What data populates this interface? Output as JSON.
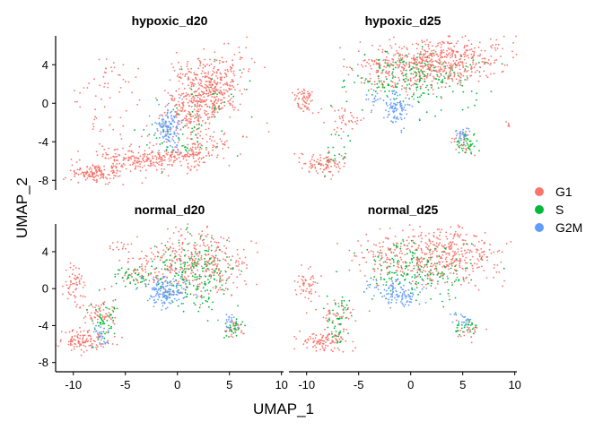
{
  "chart_data": {
    "type": "scatter",
    "title": "",
    "xlabel": "UMAP_1",
    "ylabel": "UMAP_2",
    "xlim": [
      -11.7,
      10.2
    ],
    "ylim": [
      -9,
      7
    ],
    "xticks": [
      -10,
      -5,
      0,
      5,
      10
    ],
    "yticks": [
      -8,
      -4,
      0,
      4
    ],
    "grid": false,
    "legend_position": "right",
    "colors": {
      "G1": "#F8766D",
      "S": "#00BA38",
      "G2M": "#619CFF"
    },
    "legend": [
      "G1",
      "S",
      "G2M"
    ],
    "panels": [
      {
        "name": "hypoxic_d20",
        "clusters": [
          {
            "phase": "G1",
            "cx": 2.5,
            "cy": 0.5,
            "sx": 2.6,
            "sy": 1.3,
            "n": 520,
            "rot": 0.9
          },
          {
            "phase": "G1",
            "cx": -3.0,
            "cy": -5.8,
            "sx": 3.2,
            "sy": 0.6,
            "n": 230,
            "rot": 0.0
          },
          {
            "phase": "G1",
            "cx": -8.0,
            "cy": -7.3,
            "sx": 1.2,
            "sy": 0.5,
            "n": 140,
            "rot": 0.0
          },
          {
            "phase": "G1",
            "cx": 1.5,
            "cy": -5.0,
            "sx": 2.4,
            "sy": 0.7,
            "n": 120,
            "rot": 0.4
          },
          {
            "phase": "G1",
            "cx": 1.5,
            "cy": 3.3,
            "sx": 1.2,
            "sy": 0.8,
            "n": 50,
            "rot": 0.0
          },
          {
            "phase": "G1",
            "cx": -5.5,
            "cy": 2.5,
            "sx": 1.5,
            "sy": 1.0,
            "n": 30,
            "rot": 0.0
          },
          {
            "phase": "G1",
            "cx": -7.0,
            "cy": -2.0,
            "sx": 1.5,
            "sy": 1.5,
            "n": 20,
            "rot": 0.0
          },
          {
            "phase": "G1",
            "cx": -9.0,
            "cy": 0.0,
            "sx": 1.0,
            "sy": 1.0,
            "n": 10,
            "rot": 0.0
          },
          {
            "phase": "G2M",
            "cx": -0.8,
            "cy": -2.6,
            "sx": 0.6,
            "sy": 1.2,
            "n": 130,
            "rot": 0.0
          },
          {
            "phase": "S",
            "cx": 0.5,
            "cy": -3.5,
            "sx": 2.0,
            "sy": 1.6,
            "n": 45,
            "rot": 0.0
          },
          {
            "phase": "S",
            "cx": 3.0,
            "cy": 0.8,
            "sx": 2.0,
            "sy": 1.5,
            "n": 30,
            "rot": 0.0
          }
        ]
      },
      {
        "name": "hypoxic_d25",
        "clusters": [
          {
            "phase": "G1",
            "cx": 2.5,
            "cy": 4.2,
            "sx": 3.3,
            "sy": 1.3,
            "n": 600,
            "rot": 0.15
          },
          {
            "phase": "G1",
            "cx": -10.2,
            "cy": 0.3,
            "sx": 0.5,
            "sy": 0.8,
            "n": 60,
            "rot": 0.0
          },
          {
            "phase": "G1",
            "cx": -8.2,
            "cy": -6.3,
            "sx": 1.1,
            "sy": 0.6,
            "n": 100,
            "rot": 0.0
          },
          {
            "phase": "G1",
            "cx": -6.3,
            "cy": -1.8,
            "sx": 1.2,
            "sy": 0.6,
            "n": 40,
            "rot": 0.0
          },
          {
            "phase": "G1",
            "cx": -2.5,
            "cy": 3.5,
            "sx": 1.3,
            "sy": 1.0,
            "n": 60,
            "rot": 0.0
          },
          {
            "phase": "G1",
            "cx": 5.0,
            "cy": -4.0,
            "sx": 0.6,
            "sy": 0.7,
            "n": 30,
            "rot": 0.0
          },
          {
            "phase": "G1",
            "cx": 9.3,
            "cy": -2.4,
            "sx": 0.25,
            "sy": 0.2,
            "n": 6,
            "rot": 0.0
          },
          {
            "phase": "S",
            "cx": 0.5,
            "cy": 2.5,
            "sx": 3.0,
            "sy": 1.4,
            "n": 200,
            "rot": 0.0
          },
          {
            "phase": "S",
            "cx": 5.3,
            "cy": -4.2,
            "sx": 0.6,
            "sy": 0.6,
            "n": 40,
            "rot": 0.0
          },
          {
            "phase": "S",
            "cx": -7.2,
            "cy": -5.2,
            "sx": 0.8,
            "sy": 1.0,
            "n": 20,
            "rot": 0.0
          },
          {
            "phase": "G2M",
            "cx": -1.2,
            "cy": -0.5,
            "sx": 0.6,
            "sy": 0.9,
            "n": 90,
            "rot": 0.0
          },
          {
            "phase": "G2M",
            "cx": -3.5,
            "cy": 0.5,
            "sx": 0.4,
            "sy": 0.4,
            "n": 15,
            "rot": 0.0
          },
          {
            "phase": "G2M",
            "cx": 5.0,
            "cy": -3.3,
            "sx": 0.5,
            "sy": 0.4,
            "n": 25,
            "rot": 0.0
          }
        ]
      },
      {
        "name": "normal_d20",
        "clusters": [
          {
            "phase": "G1",
            "cx": 2.3,
            "cy": 3.0,
            "sx": 2.3,
            "sy": 1.7,
            "n": 330,
            "rot": 0.0
          },
          {
            "phase": "G1",
            "cx": -10.0,
            "cy": 0.2,
            "sx": 0.6,
            "sy": 1.0,
            "n": 60,
            "rot": 0.0
          },
          {
            "phase": "G1",
            "cx": -9.0,
            "cy": -5.6,
            "sx": 1.3,
            "sy": 0.6,
            "n": 120,
            "rot": 0.0
          },
          {
            "phase": "G1",
            "cx": -7.3,
            "cy": -2.8,
            "sx": 0.8,
            "sy": 0.6,
            "n": 60,
            "rot": 0.0
          },
          {
            "phase": "G1",
            "cx": -2.5,
            "cy": 2.0,
            "sx": 1.5,
            "sy": 1.2,
            "n": 80,
            "rot": 0.0
          },
          {
            "phase": "G1",
            "cx": 5.5,
            "cy": -4.5,
            "sx": 0.6,
            "sy": 0.5,
            "n": 25,
            "rot": 0.0
          },
          {
            "phase": "G1",
            "cx": -5.5,
            "cy": 4.5,
            "sx": 0.6,
            "sy": 0.4,
            "n": 15,
            "rot": 0.0
          },
          {
            "phase": "S",
            "cx": 1.5,
            "cy": 1.5,
            "sx": 2.0,
            "sy": 2.0,
            "n": 200,
            "rot": 0.0
          },
          {
            "phase": "S",
            "cx": -7.2,
            "cy": -3.5,
            "sx": 0.8,
            "sy": 1.3,
            "n": 50,
            "rot": 0.0
          },
          {
            "phase": "S",
            "cx": -4.0,
            "cy": 1.5,
            "sx": 1.0,
            "sy": 0.6,
            "n": 40,
            "rot": 0.0
          },
          {
            "phase": "S",
            "cx": 5.5,
            "cy": -4.3,
            "sx": 0.5,
            "sy": 0.5,
            "n": 30,
            "rot": 0.0
          },
          {
            "phase": "G2M",
            "cx": -1.0,
            "cy": -0.2,
            "sx": 1.1,
            "sy": 0.9,
            "n": 150,
            "rot": 0.0
          },
          {
            "phase": "G2M",
            "cx": -7.3,
            "cy": -5.0,
            "sx": 0.4,
            "sy": 0.5,
            "n": 25,
            "rot": 0.0
          },
          {
            "phase": "G2M",
            "cx": 5.0,
            "cy": -3.5,
            "sx": 0.4,
            "sy": 0.4,
            "n": 20,
            "rot": 0.0
          }
        ]
      },
      {
        "name": "normal_d25",
        "clusters": [
          {
            "phase": "G1",
            "cx": 3.0,
            "cy": 3.5,
            "sx": 2.8,
            "sy": 1.6,
            "n": 430,
            "rot": 0.0
          },
          {
            "phase": "G1",
            "cx": -10.0,
            "cy": 0.3,
            "sx": 0.6,
            "sy": 1.0,
            "n": 55,
            "rot": 0.0
          },
          {
            "phase": "G1",
            "cx": -8.3,
            "cy": -5.7,
            "sx": 1.3,
            "sy": 0.6,
            "n": 110,
            "rot": 0.0
          },
          {
            "phase": "G1",
            "cx": -7.0,
            "cy": -2.6,
            "sx": 0.8,
            "sy": 0.7,
            "n": 40,
            "rot": 0.0
          },
          {
            "phase": "G1",
            "cx": -3.0,
            "cy": 3.5,
            "sx": 1.5,
            "sy": 1.0,
            "n": 70,
            "rot": 0.0
          },
          {
            "phase": "G1",
            "cx": 5.5,
            "cy": -4.5,
            "sx": 0.6,
            "sy": 0.5,
            "n": 25,
            "rot": 0.0
          },
          {
            "phase": "S",
            "cx": 0.5,
            "cy": 2.0,
            "sx": 2.5,
            "sy": 1.5,
            "n": 180,
            "rot": 0.0
          },
          {
            "phase": "S",
            "cx": -7.0,
            "cy": -3.5,
            "sx": 0.7,
            "sy": 1.4,
            "n": 50,
            "rot": 0.0
          },
          {
            "phase": "S",
            "cx": 5.5,
            "cy": -4.2,
            "sx": 0.5,
            "sy": 0.5,
            "n": 30,
            "rot": 0.0
          },
          {
            "phase": "G2M",
            "cx": -1.0,
            "cy": -0.5,
            "sx": 0.9,
            "sy": 0.8,
            "n": 100,
            "rot": 0.0
          },
          {
            "phase": "G2M",
            "cx": 5.0,
            "cy": -3.3,
            "sx": 0.4,
            "sy": 0.4,
            "n": 20,
            "rot": 0.0
          },
          {
            "phase": "G2M",
            "cx": -3.5,
            "cy": 0.5,
            "sx": 0.4,
            "sy": 0.4,
            "n": 10,
            "rot": 0.0
          }
        ]
      }
    ]
  }
}
